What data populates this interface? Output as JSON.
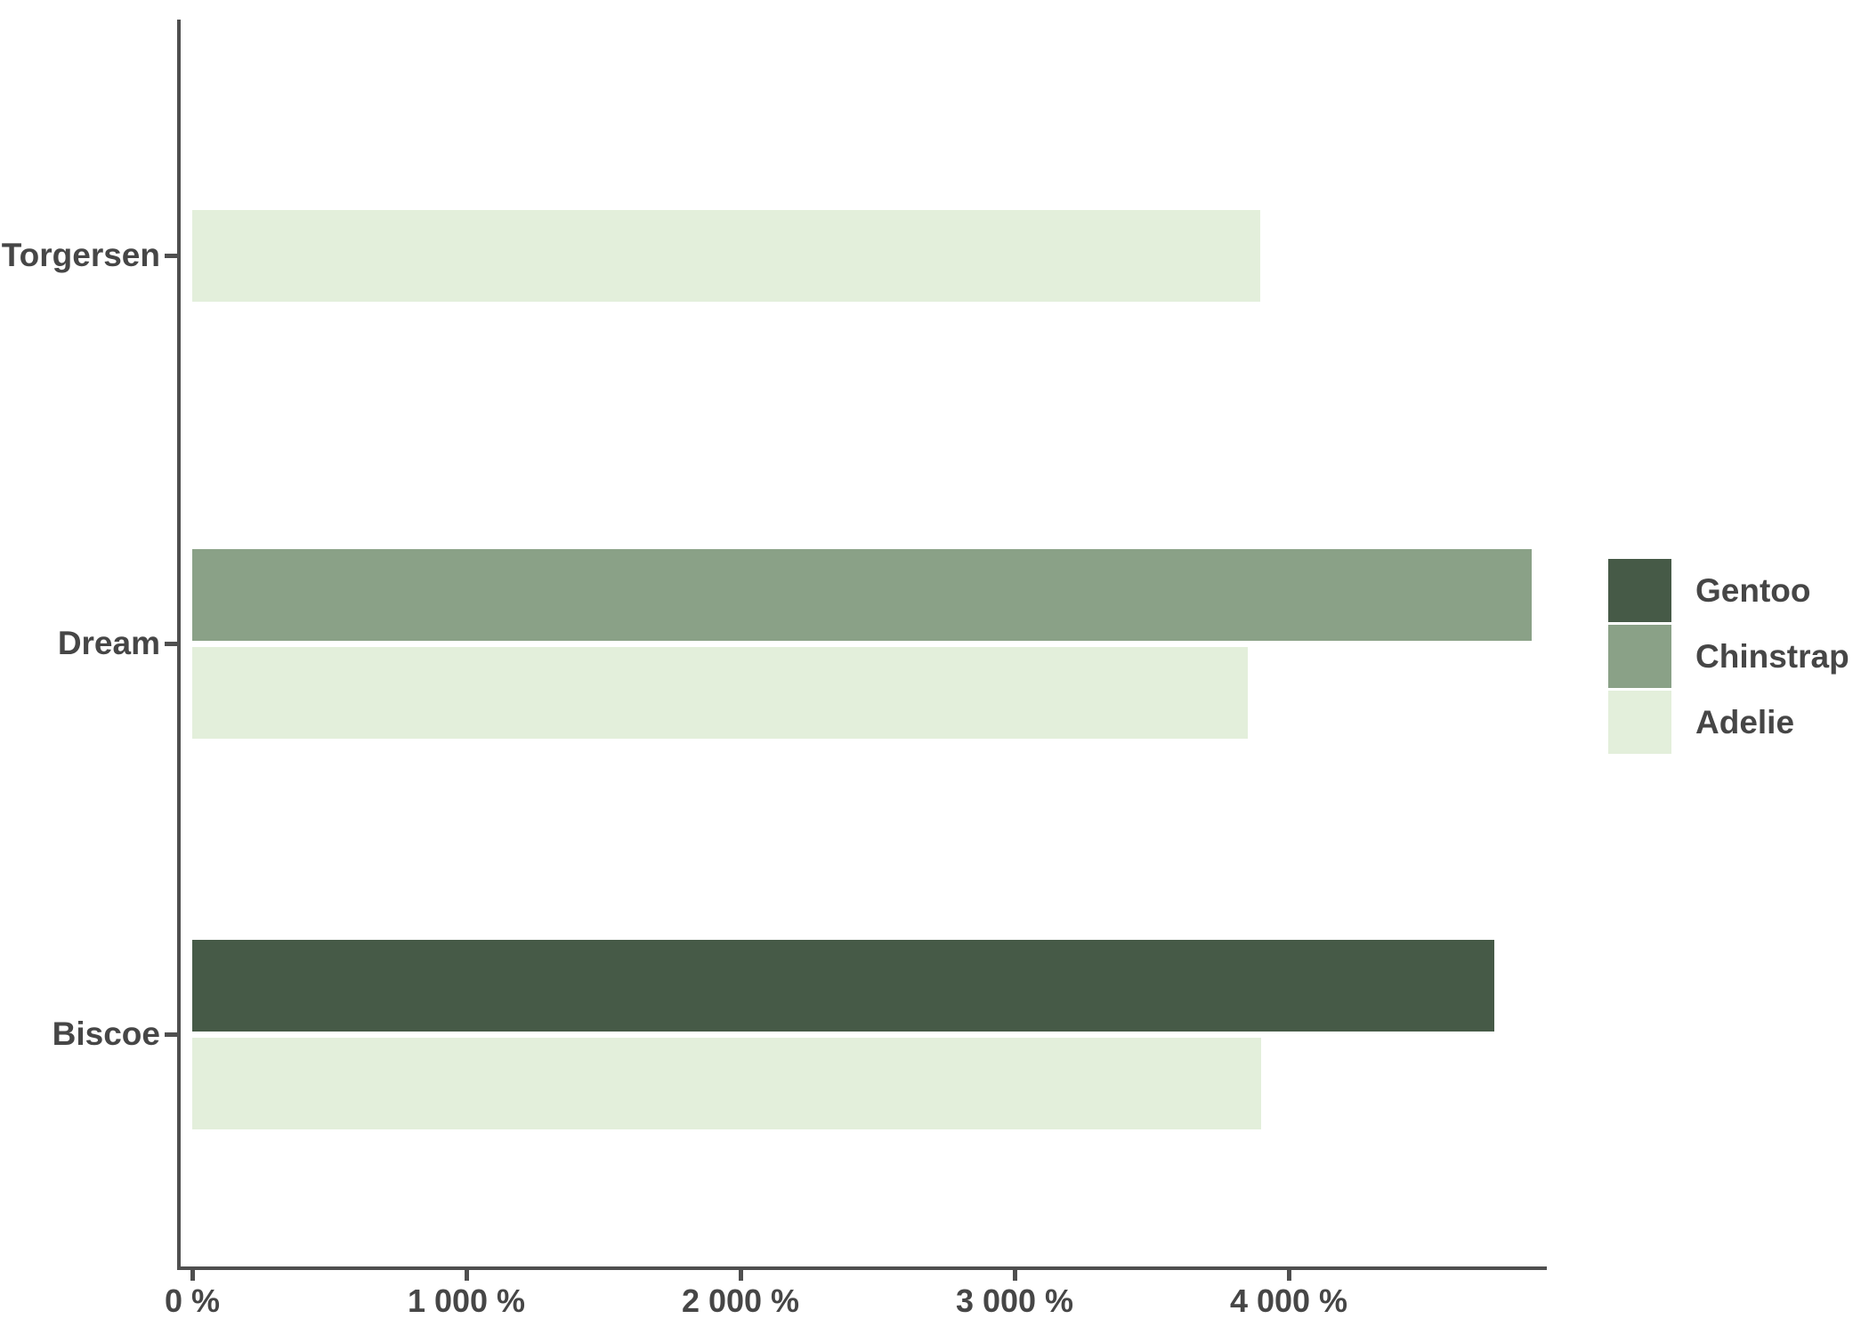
{
  "chart_data": {
    "type": "bar",
    "orientation": "horizontal",
    "title": "",
    "xlabel": "",
    "ylabel": "",
    "grid": false,
    "legend_position": "right",
    "background": "#FFFFFF",
    "axis_color": "#4F4F4F",
    "text_color": "#464646",
    "x_axis": {
      "unit": "%",
      "xlim": [
        0,
        4940
      ],
      "ticks": [
        {
          "value": 0,
          "label": "0 %"
        },
        {
          "value": 1000,
          "label": "1 000 %"
        },
        {
          "value": 2000,
          "label": "2 000 %"
        },
        {
          "value": 3000,
          "label": "3 000 %"
        },
        {
          "value": 4000,
          "label": "4 000 %"
        }
      ]
    },
    "categories": [
      "Torgersen",
      "Dream",
      "Biscoe"
    ],
    "groups": [
      {
        "category": "Torgersen",
        "bars": [
          {
            "series": "Adelie",
            "value": 3895
          }
        ]
      },
      {
        "category": "Dream",
        "bars": [
          {
            "series": "Chinstrap",
            "value": 4885
          },
          {
            "series": "Adelie",
            "value": 3850
          }
        ]
      },
      {
        "category": "Biscoe",
        "bars": [
          {
            "series": "Gentoo",
            "value": 4750
          },
          {
            "series": "Adelie",
            "value": 3900
          }
        ]
      }
    ],
    "legend": [
      {
        "label": "Gentoo",
        "color": "#465A47"
      },
      {
        "label": "Chinstrap",
        "color": "#8AA187"
      },
      {
        "label": "Adelie",
        "color": "#E3EFDB"
      }
    ]
  }
}
